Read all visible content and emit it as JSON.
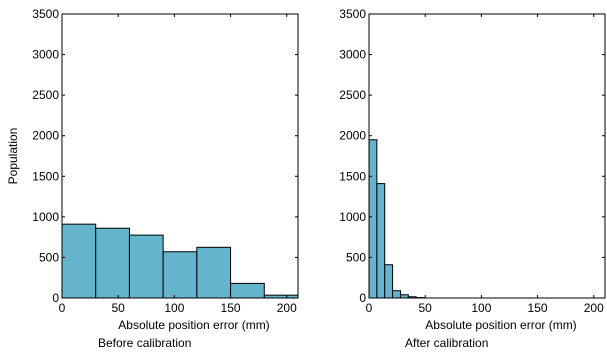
{
  "chart_data": [
    {
      "type": "bar",
      "panel": "left",
      "bin_edges": [
        0,
        30,
        60,
        90,
        120,
        150,
        180,
        210
      ],
      "values": [
        910,
        860,
        775,
        570,
        625,
        180,
        35
      ],
      "xlim": [
        0,
        210
      ],
      "ylim": [
        0,
        3500
      ],
      "xticks": [
        0,
        50,
        100,
        150,
        200
      ],
      "yticks": [
        0,
        500,
        1000,
        1500,
        2000,
        2500,
        3000,
        3500
      ],
      "xlabel": "Absolute position error (mm)",
      "ylabel": "Population",
      "caption": "Before calibration",
      "bar_color": "#64b4cd",
      "grid": false
    },
    {
      "type": "bar",
      "panel": "right",
      "bin_edges": [
        0,
        7,
        14,
        21,
        28,
        35,
        42,
        49
      ],
      "values": [
        1950,
        1410,
        410,
        90,
        40,
        15,
        5
      ],
      "xlim": [
        0,
        210
      ],
      "ylim": [
        0,
        3500
      ],
      "xticks": [
        0,
        50,
        100,
        150,
        200
      ],
      "yticks": [
        0,
        500,
        1000,
        1500,
        2000,
        2500,
        3000,
        3500
      ],
      "xlabel": "Absolute position error (mm)",
      "ylabel": "",
      "caption": "After calibration",
      "bar_color": "#64b4cd",
      "grid": false
    }
  ]
}
